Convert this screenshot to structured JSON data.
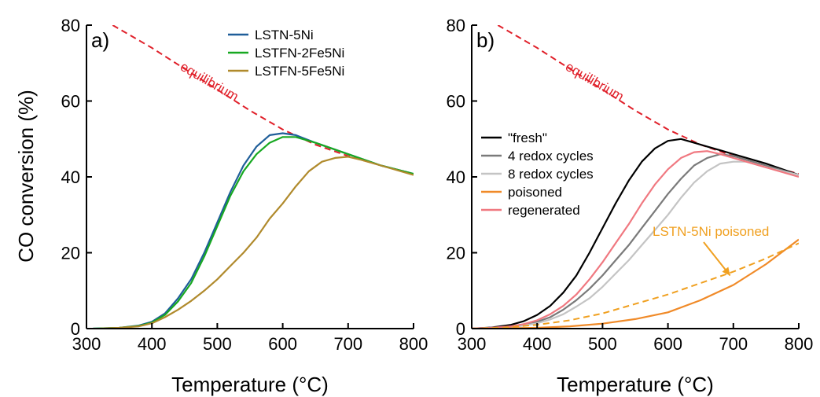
{
  "y_axis_title": "CO conversion (%)",
  "chart_data": [
    {
      "panel_label": "a)",
      "type": "line",
      "xlabel": "Temperature (°C)",
      "ylabel": "CO conversion (%)",
      "xlim": [
        300,
        800
      ],
      "ylim": [
        0,
        80
      ],
      "xticks": [
        300,
        400,
        500,
        600,
        700,
        800
      ],
      "yticks": [
        0,
        20,
        40,
        60,
        80
      ],
      "legend_position": "top-right",
      "annotations": [
        {
          "text": "equilibrium",
          "color": "#e0202a"
        }
      ],
      "series": [
        {
          "name": "equilibrium",
          "color": "#e0202a",
          "dashed": true,
          "in_legend": false,
          "x": [
            340,
            400,
            450,
            500,
            550,
            600,
            650,
            700,
            750,
            800
          ],
          "y": [
            80,
            74,
            68.5,
            63,
            57.5,
            52.5,
            48.5,
            45.5,
            43,
            40.8
          ]
        },
        {
          "name": "LSTN-5Ni",
          "color": "#1f5e99",
          "dashed": false,
          "in_legend": true,
          "x": [
            310,
            350,
            380,
            400,
            420,
            440,
            460,
            480,
            500,
            520,
            540,
            560,
            580,
            600,
            620,
            650,
            700,
            750,
            800
          ],
          "y": [
            0,
            0.2,
            0.8,
            1.8,
            4,
            8,
            13,
            20,
            28,
            36,
            43,
            48,
            51,
            51.5,
            51,
            49,
            46,
            43,
            40.8
          ]
        },
        {
          "name": "LSTFN-2Fe5Ni",
          "color": "#17a821",
          "dashed": false,
          "in_legend": true,
          "x": [
            310,
            350,
            380,
            400,
            420,
            440,
            460,
            480,
            500,
            520,
            540,
            560,
            580,
            600,
            620,
            650,
            700,
            750,
            800
          ],
          "y": [
            0,
            0.2,
            0.7,
            1.6,
            3.6,
            7.2,
            12,
            19,
            27,
            35,
            41.5,
            46,
            49,
            50.5,
            50.5,
            49,
            46,
            43,
            40.8
          ]
        },
        {
          "name": "LSTFN-5Fe5Ni",
          "color": "#b08a2c",
          "dashed": false,
          "in_legend": true,
          "x": [
            320,
            350,
            380,
            400,
            420,
            440,
            460,
            480,
            500,
            520,
            540,
            560,
            580,
            600,
            620,
            640,
            660,
            680,
            700,
            720,
            750,
            800
          ],
          "y": [
            0,
            0.2,
            0.6,
            1.4,
            3,
            5,
            7.3,
            10,
            13,
            16.5,
            20,
            24,
            29,
            33,
            37.5,
            41.5,
            44,
            45,
            45.3,
            44.5,
            43,
            40.5
          ]
        }
      ]
    },
    {
      "panel_label": "b)",
      "type": "line",
      "xlabel": "Temperature (°C)",
      "ylabel": "",
      "xlim": [
        300,
        800
      ],
      "ylim": [
        0,
        80
      ],
      "xticks": [
        300,
        400,
        500,
        600,
        700,
        800
      ],
      "yticks": [
        0,
        20,
        40,
        60,
        80
      ],
      "legend_position": "middle-left",
      "annotations": [
        {
          "text": "equilibrium",
          "color": "#e0202a"
        },
        {
          "text": "LSTN-5Ni poisoned",
          "color": "#f0a020",
          "arrow_to": [
            695,
            14
          ]
        }
      ],
      "series": [
        {
          "name": "equilibrium",
          "color": "#e0202a",
          "dashed": true,
          "in_legend": false,
          "x": [
            340,
            400,
            450,
            500,
            550,
            600,
            650,
            700,
            750,
            800
          ],
          "y": [
            80,
            74,
            68.5,
            63,
            57.5,
            52.5,
            48.5,
            45.5,
            43,
            40.8
          ]
        },
        {
          "name": "\"fresh\"",
          "color": "#000000",
          "dashed": false,
          "in_legend": true,
          "x": [
            300,
            330,
            360,
            380,
            400,
            420,
            440,
            460,
            480,
            500,
            520,
            540,
            560,
            580,
            600,
            620,
            640,
            660,
            680,
            700,
            750,
            800
          ],
          "y": [
            0,
            0.3,
            1,
            2,
            3.6,
            6,
            9.5,
            14,
            20,
            26.5,
            33,
            39,
            44,
            47.5,
            49.5,
            50,
            49,
            48,
            47,
            46,
            43.5,
            40.5
          ]
        },
        {
          "name": "4 redox cycles",
          "color": "#7a7a7a",
          "dashed": false,
          "in_legend": true,
          "x": [
            300,
            330,
            360,
            380,
            400,
            420,
            440,
            460,
            480,
            500,
            520,
            540,
            560,
            580,
            600,
            620,
            640,
            660,
            680,
            700,
            720,
            750,
            800
          ],
          "y": [
            0,
            0.2,
            0.5,
            1,
            1.8,
            3,
            5,
            7.5,
            10.5,
            14,
            18,
            22,
            26.5,
            31,
            35.5,
            39.5,
            43,
            45,
            46,
            45.5,
            44.5,
            43,
            40.5
          ]
        },
        {
          "name": "8 redox cycles",
          "color": "#c4c4c4",
          "dashed": false,
          "in_legend": true,
          "x": [
            300,
            330,
            360,
            380,
            400,
            420,
            440,
            460,
            480,
            500,
            520,
            540,
            560,
            580,
            600,
            620,
            640,
            660,
            680,
            700,
            720,
            750,
            800
          ],
          "y": [
            0,
            0.2,
            0.4,
            0.8,
            1.4,
            2.4,
            3.8,
            5.8,
            8,
            11,
            14.5,
            18,
            22,
            26,
            30,
            34.5,
            38.5,
            41.5,
            43.5,
            44,
            44,
            42.5,
            40.5
          ]
        },
        {
          "name": "poisoned",
          "color": "#f08a28",
          "dashed": false,
          "in_legend": true,
          "x": [
            300,
            400,
            450,
            500,
            550,
            600,
            650,
            700,
            750,
            800
          ],
          "y": [
            0,
            0.2,
            0.6,
            1.3,
            2.5,
            4.3,
            7.5,
            11.5,
            17,
            23.5
          ]
        },
        {
          "name": "regenerated",
          "color": "#f07880",
          "dashed": false,
          "in_legend": true,
          "x": [
            300,
            330,
            360,
            380,
            400,
            420,
            440,
            460,
            480,
            500,
            520,
            540,
            560,
            580,
            600,
            620,
            640,
            660,
            680,
            700,
            750,
            800
          ],
          "y": [
            0,
            0.2,
            0.6,
            1.2,
            2.2,
            3.8,
            6,
            9,
            13,
            17.5,
            22.5,
            27.5,
            33,
            38,
            42,
            45,
            46.5,
            46.8,
            46,
            45,
            42.5,
            40
          ]
        },
        {
          "name": "LSTN-5Ni poisoned",
          "color": "#f0a020",
          "dashed": true,
          "in_legend": false,
          "x": [
            300,
            350,
            400,
            450,
            500,
            550,
            600,
            650,
            700,
            750,
            800
          ],
          "y": [
            0,
            0.3,
            1,
            2.2,
            4,
            6.5,
            9,
            12,
            15,
            18.5,
            22.5
          ]
        }
      ]
    }
  ]
}
